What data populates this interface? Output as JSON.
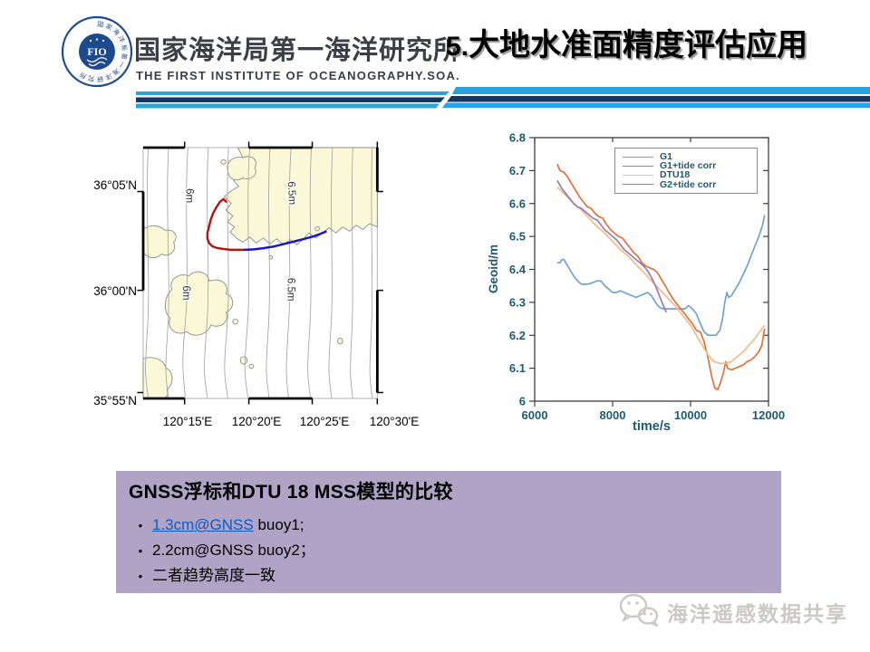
{
  "theme": {
    "stripe_blue": "#29a3dc",
    "stripe_navy": "#17365d",
    "logo_navy": "#1d4a8c",
    "box_bg": "#afa4c6",
    "link_color": "#0b5cc4",
    "axis_color": "#1e5a70",
    "land_color": "#fbf8d7"
  },
  "header": {
    "logo_text": "FIO",
    "logo_ring": "国家海洋局第一海洋研究所",
    "institute_cn": "国家海洋局第一海洋研究所",
    "institute_en": "THE FIRST INSTITUTE OF OCEANOGRAPHY.SOA.",
    "title_num": "5.",
    "title": "大地水准面精度评估应用"
  },
  "chart_data": [
    {
      "type": "map",
      "x_ticks": [
        "120°15'E",
        "120°20'E",
        "120°25'E",
        "120°30'E"
      ],
      "x_tick_pos": [
        49,
        125,
        200,
        277
      ],
      "y_ticks": [
        "36°05'N",
        "36°00'N",
        "35°55'N"
      ],
      "y_tick_pos": [
        52,
        169,
        290
      ],
      "contour_labels": [
        "6m",
        "6m",
        "6.5m",
        "6.5m"
      ],
      "tracks": [
        {
          "name": "gnss-track-red",
          "color": "#b01515",
          "points": [
            [
              98,
              64
            ],
            [
              95,
              61
            ],
            [
              91,
              64
            ],
            [
              87,
              70
            ],
            [
              83,
              77
            ],
            [
              80,
              85
            ],
            [
              78,
              93
            ],
            [
              76,
              101
            ],
            [
              76,
              108
            ],
            [
              78,
              113
            ],
            [
              82,
              117
            ],
            [
              88,
              119
            ],
            [
              95,
              120
            ],
            [
              103,
              121
            ],
            [
              111,
              121
            ],
            [
              120,
              121
            ]
          ]
        },
        {
          "name": "gnss-track-blue",
          "color": "#1515cc",
          "points": [
            [
              120,
              121
            ],
            [
              131,
              120.5
            ],
            [
              143,
              119
            ],
            [
              155,
              117
            ],
            [
              167,
              114
            ],
            [
              179,
              111
            ],
            [
              191,
              108
            ],
            [
              202,
              105
            ],
            [
              210,
              102
            ],
            [
              216,
              99.5
            ]
          ]
        }
      ]
    },
    {
      "type": "line",
      "xlabel": "time/s",
      "ylabel": "Geoid/m",
      "xlim": [
        6000,
        12000
      ],
      "ylim": [
        6,
        6.8
      ],
      "x_ticks": [
        "6000",
        "8000",
        "10000",
        "12000"
      ],
      "y_ticks": [
        "6",
        "6.1",
        "6.2",
        "6.3",
        "6.4",
        "6.5",
        "6.6",
        "6.7",
        "6.8"
      ],
      "legend_position": "top-right",
      "series": [
        {
          "name": "G1",
          "color": "#6fa3d8",
          "points": [
            [
              6580,
              6.42
            ],
            [
              6650,
              6.42
            ],
            [
              6700,
              6.43
            ],
            [
              6750,
              6.43
            ],
            [
              6800,
              6.42
            ],
            [
              6900,
              6.4
            ],
            [
              7000,
              6.38
            ],
            [
              7100,
              6.365
            ],
            [
              7200,
              6.355
            ],
            [
              7350,
              6.355
            ],
            [
              7500,
              6.36
            ],
            [
              7600,
              6.365
            ],
            [
              7700,
              6.365
            ],
            [
              7800,
              6.35
            ],
            [
              7900,
              6.34
            ],
            [
              8000,
              6.33
            ],
            [
              8100,
              6.33
            ],
            [
              8200,
              6.335
            ],
            [
              8300,
              6.33
            ],
            [
              8400,
              6.325
            ],
            [
              8500,
              6.32
            ],
            [
              8600,
              6.315
            ],
            [
              8700,
              6.32
            ],
            [
              8800,
              6.325
            ],
            [
              8900,
              6.33
            ],
            [
              9000,
              6.32
            ],
            [
              9100,
              6.3
            ],
            [
              9200,
              6.285
            ],
            [
              9300,
              6.28
            ],
            [
              9500,
              6.28
            ],
            [
              9700,
              6.28
            ],
            [
              9850,
              6.28
            ],
            [
              9950,
              6.29
            ],
            [
              10050,
              6.28
            ],
            [
              10150,
              6.265
            ],
            [
              10250,
              6.235
            ],
            [
              10350,
              6.21
            ],
            [
              10450,
              6.2
            ],
            [
              10550,
              6.2
            ],
            [
              10650,
              6.2
            ],
            [
              10750,
              6.215
            ],
            [
              10820,
              6.25
            ],
            [
              10880,
              6.3
            ],
            [
              10930,
              6.33
            ],
            [
              10980,
              6.315
            ],
            [
              11050,
              6.32
            ],
            [
              11150,
              6.34
            ],
            [
              11250,
              6.36
            ],
            [
              11350,
              6.385
            ],
            [
              11450,
              6.41
            ],
            [
              11550,
              6.44
            ],
            [
              11650,
              6.47
            ],
            [
              11750,
              6.5
            ],
            [
              11850,
              6.535
            ],
            [
              11900,
              6.565
            ]
          ]
        },
        {
          "name": "G1+tide corr",
          "color": "#e2703c",
          "points": [
            [
              6580,
              6.72
            ],
            [
              6650,
              6.7
            ],
            [
              6750,
              6.695
            ],
            [
              6850,
              6.68
            ],
            [
              6950,
              6.66
            ],
            [
              7050,
              6.64
            ],
            [
              7150,
              6.62
            ],
            [
              7250,
              6.605
            ],
            [
              7350,
              6.59
            ],
            [
              7450,
              6.585
            ],
            [
              7550,
              6.57
            ],
            [
              7650,
              6.56
            ],
            [
              7750,
              6.555
            ],
            [
              7850,
              6.535
            ],
            [
              7950,
              6.52
            ],
            [
              8050,
              6.51
            ],
            [
              8150,
              6.5
            ],
            [
              8250,
              6.495
            ],
            [
              8350,
              6.48
            ],
            [
              8450,
              6.465
            ],
            [
              8550,
              6.45
            ],
            [
              8650,
              6.44
            ],
            [
              8750,
              6.42
            ],
            [
              8850,
              6.41
            ],
            [
              8950,
              6.405
            ],
            [
              9050,
              6.4
            ],
            [
              9150,
              6.39
            ],
            [
              9250,
              6.37
            ],
            [
              9350,
              6.35
            ],
            [
              9450,
              6.33
            ],
            [
              9550,
              6.31
            ],
            [
              9650,
              6.295
            ],
            [
              9750,
              6.28
            ],
            [
              9850,
              6.265
            ],
            [
              9950,
              6.25
            ],
            [
              10050,
              6.235
            ],
            [
              10150,
              6.215
            ],
            [
              10250,
              6.21
            ],
            [
              10350,
              6.18
            ],
            [
              10450,
              6.13
            ],
            [
              10550,
              6.07
            ],
            [
              10620,
              6.04
            ],
            [
              10700,
              6.035
            ],
            [
              10780,
              6.06
            ],
            [
              10850,
              6.09
            ],
            [
              10900,
              6.12
            ],
            [
              10950,
              6.1
            ],
            [
              11050,
              6.095
            ],
            [
              11150,
              6.1
            ],
            [
              11250,
              6.105
            ],
            [
              11350,
              6.11
            ],
            [
              11450,
              6.12
            ],
            [
              11550,
              6.125
            ],
            [
              11650,
              6.135
            ],
            [
              11750,
              6.15
            ],
            [
              11830,
              6.17
            ],
            [
              11900,
              6.22
            ]
          ]
        },
        {
          "name": "DTU18",
          "color": "#f2bc84",
          "points": [
            [
              6580,
              6.65
            ],
            [
              6800,
              6.625
            ],
            [
              7000,
              6.6
            ],
            [
              7200,
              6.58
            ],
            [
              7400,
              6.555
            ],
            [
              7600,
              6.53
            ],
            [
              7800,
              6.51
            ],
            [
              8000,
              6.485
            ],
            [
              8200,
              6.46
            ],
            [
              8400,
              6.44
            ],
            [
              8600,
              6.415
            ],
            [
              8800,
              6.39
            ],
            [
              9000,
              6.365
            ],
            [
              9200,
              6.34
            ],
            [
              9400,
              6.315
            ],
            [
              9600,
              6.29
            ],
            [
              9800,
              6.26
            ],
            [
              10000,
              6.23
            ],
            [
              10150,
              6.2
            ],
            [
              10300,
              6.17
            ],
            [
              10450,
              6.14
            ],
            [
              10600,
              6.12
            ],
            [
              10750,
              6.115
            ],
            [
              10900,
              6.115
            ],
            [
              11050,
              6.12
            ],
            [
              11200,
              6.135
            ],
            [
              11350,
              6.15
            ],
            [
              11500,
              6.17
            ],
            [
              11650,
              6.19
            ],
            [
              11800,
              6.215
            ],
            [
              11900,
              6.23
            ]
          ]
        },
        {
          "name": "G2+tide corr",
          "color": "#967cb0",
          "points": [
            [
              6580,
              6.67
            ],
            [
              6700,
              6.645
            ],
            [
              6800,
              6.63
            ],
            [
              6900,
              6.615
            ],
            [
              7000,
              6.6
            ],
            [
              7100,
              6.59
            ],
            [
              7200,
              6.585
            ],
            [
              7300,
              6.575
            ],
            [
              7400,
              6.565
            ],
            [
              7500,
              6.555
            ],
            [
              7600,
              6.55
            ],
            [
              7700,
              6.535
            ],
            [
              7800,
              6.52
            ],
            [
              7900,
              6.51
            ],
            [
              8000,
              6.5
            ],
            [
              8100,
              6.49
            ],
            [
              8200,
              6.475
            ],
            [
              8300,
              6.46
            ],
            [
              8400,
              6.45
            ],
            [
              8500,
              6.44
            ],
            [
              8600,
              6.43
            ],
            [
              8700,
              6.42
            ],
            [
              8800,
              6.41
            ],
            [
              8900,
              6.395
            ],
            [
              9000,
              6.375
            ],
            [
              9100,
              6.35
            ],
            [
              9200,
              6.32
            ],
            [
              9300,
              6.29
            ],
            [
              9380,
              6.27
            ]
          ]
        }
      ]
    }
  ],
  "summary_box": {
    "bullet_char": "•",
    "title": "GNSS浮标和DTU 18 MSS模型的比较",
    "bullets": [
      {
        "link": "1.3cm@GNSS",
        "rest": " buoy1;"
      },
      {
        "text": "2.2cm@GNSS buoy2；"
      },
      {
        "text": "二者趋势高度一致"
      }
    ]
  },
  "watermark": {
    "text": "海洋遥感数据共享"
  }
}
